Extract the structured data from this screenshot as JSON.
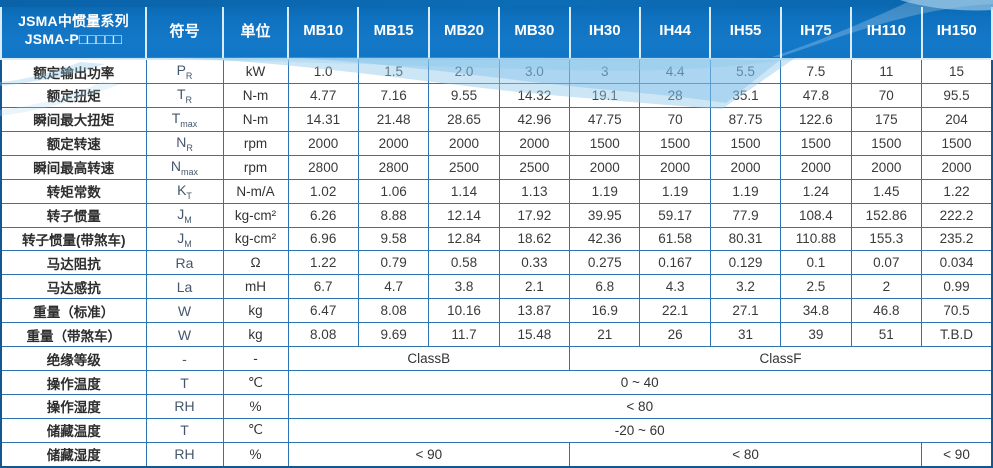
{
  "colors": {
    "header_blue": "#1478c8",
    "header_top_bar": "#0a66ae",
    "grid_blue": "#2e74b5",
    "outer_border": "#14578f",
    "wave_light_blue": "#8fc8ea",
    "text_dark": "#3a3a3a"
  },
  "header": {
    "title_line1": "JSMA中惯量系列",
    "title_line2": "JSMA-P□□□□□",
    "symbol_col": "符号",
    "unit_col": "单位",
    "models": [
      "MB10",
      "MB15",
      "MB20",
      "MB30",
      "IH30",
      "IH44",
      "IH55",
      "IH75",
      "IH110",
      "IH150"
    ]
  },
  "rows": [
    {
      "label": "额定输出功率",
      "symbol": "P",
      "symbol_sub": "R",
      "unit": "kW",
      "values": [
        "1.0",
        "1.5",
        "2.0",
        "3.0",
        "3",
        "4.4",
        "5.5",
        "7.5",
        "11",
        "15"
      ]
    },
    {
      "label": "额定扭矩",
      "symbol": "T",
      "symbol_sub": "R",
      "unit": "N-m",
      "values": [
        "4.77",
        "7.16",
        "9.55",
        "14.32",
        "19.1",
        "28",
        "35.1",
        "47.8",
        "70",
        "95.5"
      ]
    },
    {
      "label": "瞬间最大扭矩",
      "symbol": "T",
      "symbol_sub": "max",
      "unit": "N-m",
      "values": [
        "14.31",
        "21.48",
        "28.65",
        "42.96",
        "47.75",
        "70",
        "87.75",
        "122.6",
        "175",
        "204"
      ]
    },
    {
      "label": "额定转速",
      "symbol": "N",
      "symbol_sub": "R",
      "unit": "rpm",
      "values": [
        "2000",
        "2000",
        "2000",
        "2000",
        "1500",
        "1500",
        "1500",
        "1500",
        "1500",
        "1500"
      ]
    },
    {
      "label": "瞬间最高转速",
      "symbol": "N",
      "symbol_sub": "max",
      "unit": "rpm",
      "values": [
        "2800",
        "2800",
        "2500",
        "2500",
        "2000",
        "2000",
        "2000",
        "2000",
        "2000",
        "2000"
      ]
    },
    {
      "label": "转矩常数",
      "symbol": "K",
      "symbol_sub": "T",
      "unit": "N-m/A",
      "values": [
        "1.02",
        "1.06",
        "1.14",
        "1.13",
        "1.19",
        "1.19",
        "1.19",
        "1.24",
        "1.45",
        "1.22"
      ]
    },
    {
      "label": "转子惯量",
      "symbol": "J",
      "symbol_sub": "M",
      "unit": "kg-cm²",
      "values": [
        "6.26",
        "8.88",
        "12.14",
        "17.92",
        "39.95",
        "59.17",
        "77.9",
        "108.4",
        "152.86",
        "222.2"
      ]
    },
    {
      "label": "转子惯量(带煞车)",
      "symbol": "J",
      "symbol_sub": "M",
      "unit": "kg-cm²",
      "values": [
        "6.96",
        "9.58",
        "12.84",
        "18.62",
        "42.36",
        "61.58",
        "80.31",
        "110.88",
        "155.3",
        "235.2"
      ]
    },
    {
      "label": "马达阻抗",
      "symbol": "Ra",
      "symbol_sub": "",
      "unit": "Ω",
      "values": [
        "1.22",
        "0.79",
        "0.58",
        "0.33",
        "0.275",
        "0.167",
        "0.129",
        "0.1",
        "0.07",
        "0.034"
      ]
    },
    {
      "label": "马达感抗",
      "symbol": "La",
      "symbol_sub": "",
      "unit": "mH",
      "values": [
        "6.7",
        "4.7",
        "3.8",
        "2.1",
        "6.8",
        "4.3",
        "3.2",
        "2.5",
        "2",
        "0.99"
      ]
    },
    {
      "label": "重量（标准）",
      "symbol": "W",
      "symbol_sub": "",
      "unit": "kg",
      "values": [
        "6.47",
        "8.08",
        "10.16",
        "13.87",
        "16.9",
        "22.1",
        "27.1",
        "34.8",
        "46.8",
        "70.5"
      ]
    },
    {
      "label": "重量（带煞车）",
      "symbol": "W",
      "symbol_sub": "",
      "unit": "kg",
      "values": [
        "8.08",
        "9.69",
        "11.7",
        "15.48",
        "21",
        "26",
        "31",
        "39",
        "51",
        "T.B.D"
      ]
    }
  ],
  "span_rows": [
    {
      "label": "绝缘等级",
      "symbol": "-",
      "symbol_sub": "",
      "unit": "-",
      "cells": [
        {
          "text": "ClassB",
          "span": 4
        },
        {
          "text": "ClassF",
          "span": 6
        }
      ]
    },
    {
      "label": "操作温度",
      "symbol": "T",
      "symbol_sub": "",
      "unit": "℃",
      "cells": [
        {
          "text": "0 ~ 40",
          "span": 10
        }
      ]
    },
    {
      "label": "操作湿度",
      "symbol": "RH",
      "symbol_sub": "",
      "unit": "%",
      "cells": [
        {
          "text": "< 80",
          "span": 10
        }
      ]
    },
    {
      "label": "储藏温度",
      "symbol": "T",
      "symbol_sub": "",
      "unit": "℃",
      "cells": [
        {
          "text": "-20 ~ 60",
          "span": 10
        }
      ]
    },
    {
      "label": "储藏湿度",
      "symbol": "RH",
      "symbol_sub": "",
      "unit": "%",
      "cells": [
        {
          "text": "< 90",
          "span": 4
        },
        {
          "text": "< 80",
          "span": 5
        },
        {
          "text": "< 90",
          "span": 1
        }
      ]
    }
  ]
}
